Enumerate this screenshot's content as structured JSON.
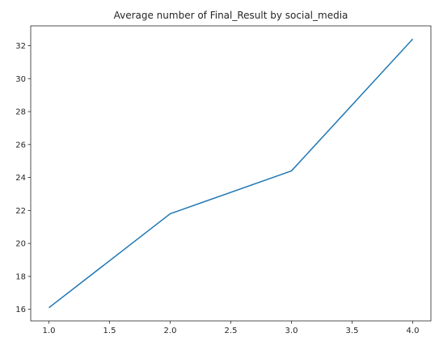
{
  "chart_data": {
    "type": "line",
    "title": "Average number of Final_Result by social_media",
    "xlabel": "",
    "ylabel": "",
    "x": [
      1.0,
      2.0,
      3.0,
      4.0
    ],
    "series": [
      {
        "values": [
          16.1,
          21.8,
          24.4,
          32.4
        ]
      }
    ],
    "xlim": [
      0.85,
      4.15
    ],
    "ylim": [
      15.3,
      33.2
    ],
    "xticks": [
      1.0,
      1.5,
      2.0,
      2.5,
      3.0,
      3.5,
      4.0
    ],
    "xtick_labels": [
      "1.0",
      "1.5",
      "2.0",
      "2.5",
      "3.0",
      "3.5",
      "4.0"
    ],
    "yticks": [
      16,
      18,
      20,
      22,
      24,
      26,
      28,
      30,
      32
    ],
    "ytick_labels": [
      "16",
      "18",
      "20",
      "22",
      "24",
      "26",
      "28",
      "30",
      "32"
    ],
    "grid": false,
    "line_color": "#1f77b4"
  }
}
